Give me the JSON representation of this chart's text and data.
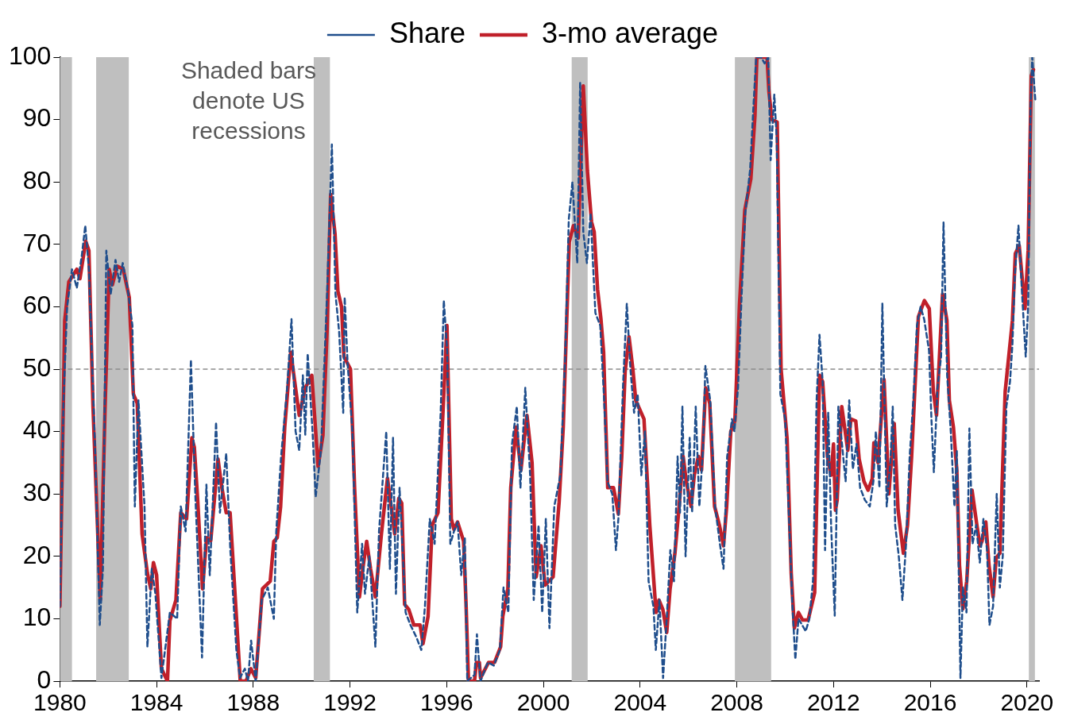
{
  "chart_data": {
    "type": "line",
    "xlim": [
      1980,
      2020.5
    ],
    "xticks": [
      1980,
      1984,
      1988,
      1992,
      1996,
      2000,
      2004,
      2008,
      2012,
      2016,
      2020
    ],
    "ylim": [
      0,
      100
    ],
    "yticks": [
      0,
      10,
      20,
      30,
      40,
      50,
      60,
      70,
      80,
      90,
      100
    ],
    "grid": false,
    "legend": "top",
    "marker": "none",
    "annotations": [
      "Shaded bars denote US recessions"
    ],
    "ref_lines": [
      {
        "axis": "y",
        "value": 50,
        "color": "#8c8c8c",
        "line_style": "dashed"
      }
    ],
    "bands": [
      {
        "axis": "x",
        "from": 1980.0,
        "to": 1980.5,
        "color": "#bfbfbf"
      },
      {
        "axis": "x",
        "from": 1981.5,
        "to": 1982.85,
        "color": "#bfbfbf"
      },
      {
        "axis": "x",
        "from": 1990.5,
        "to": 1991.17,
        "color": "#bfbfbf"
      },
      {
        "axis": "x",
        "from": 2001.17,
        "to": 2001.83,
        "color": "#bfbfbf"
      },
      {
        "axis": "x",
        "from": 2007.92,
        "to": 2009.42,
        "color": "#bfbfbf"
      },
      {
        "axis": "x",
        "from": 2020.08,
        "to": 2020.33,
        "color": "#bfbfbf"
      }
    ],
    "series": [
      {
        "name": "Share",
        "color": "#1f4e8c",
        "line_style": "dashed",
        "x": [
          1980.0,
          1980.15,
          1980.3,
          1980.5,
          1980.7,
          1980.9,
          1981.05,
          1981.2,
          1981.45,
          1981.65,
          1981.78,
          1981.92,
          1982.1,
          1982.3,
          1982.45,
          1982.6,
          1982.8,
          1983.0,
          1983.1,
          1983.25,
          1983.5,
          1983.62,
          1983.8,
          1983.95,
          1984.2,
          1984.55,
          1984.85,
          1985.0,
          1985.2,
          1985.42,
          1985.6,
          1985.88,
          1986.06,
          1986.2,
          1986.46,
          1986.62,
          1986.88,
          1987.05,
          1987.3,
          1987.45,
          1987.65,
          1987.78,
          1987.91,
          1988.1,
          1988.35,
          1988.6,
          1988.85,
          1988.95,
          1989.15,
          1989.4,
          1989.58,
          1989.75,
          1989.9,
          1990.05,
          1990.15,
          1990.25,
          1990.45,
          1990.58,
          1990.8,
          1991.05,
          1991.25,
          1991.4,
          1991.55,
          1991.72,
          1991.78,
          1991.9,
          1992.1,
          1992.3,
          1992.5,
          1992.62,
          1992.8,
          1993.05,
          1993.2,
          1993.5,
          1993.65,
          1993.78,
          1993.9,
          1994.05,
          1994.3,
          1994.5,
          1994.75,
          1994.95,
          1995.1,
          1995.3,
          1995.5,
          1995.75,
          1995.88,
          1996.02,
          1996.15,
          1996.3,
          1996.45,
          1996.6,
          1996.75,
          1996.85,
          1997.15,
          1997.25,
          1997.4,
          1997.7,
          1997.95,
          1998.2,
          1998.35,
          1998.55,
          1998.7,
          1998.9,
          1999.05,
          1999.25,
          1999.45,
          1999.6,
          1999.8,
          1999.95,
          2000.1,
          2000.25,
          2000.45,
          2000.7,
          2000.9,
          2001.05,
          2001.2,
          2001.4,
          2001.52,
          2001.65,
          2001.8,
          2001.95,
          2002.15,
          2002.35,
          2002.5,
          2002.65,
          2002.85,
          2003.0,
          2003.1,
          2003.3,
          2003.45,
          2003.6,
          2003.75,
          2003.9,
          2004.05,
          2004.2,
          2004.35,
          2004.55,
          2004.65,
          2004.8,
          2004.95,
          2005.1,
          2005.25,
          2005.4,
          2005.55,
          2005.65,
          2005.75,
          2005.88,
          2006.05,
          2006.15,
          2006.3,
          2006.45,
          2006.6,
          2006.7,
          2006.9,
          2007.1,
          2007.3,
          2007.45,
          2007.6,
          2007.8,
          2007.9,
          2008.05,
          2008.2,
          2008.35,
          2008.55,
          2008.7,
          2008.8,
          2009.0,
          2009.15,
          2009.3,
          2009.4,
          2009.55,
          2009.65,
          2009.8,
          2010.0,
          2010.15,
          2010.3,
          2010.42,
          2010.55,
          2010.7,
          2010.85,
          2011.0,
          2011.15,
          2011.3,
          2011.42,
          2011.55,
          2011.65,
          2011.78,
          2011.9,
          2012.05,
          2012.2,
          2012.35,
          2012.5,
          2012.65,
          2012.8,
          2012.95,
          2013.1,
          2013.3,
          2013.5,
          2013.65,
          2013.75,
          2013.9,
          2014.02,
          2014.2,
          2014.35,
          2014.45,
          2014.55,
          2014.7,
          2014.85,
          2015.0,
          2015.15,
          2015.3,
          2015.45,
          2015.6,
          2015.75,
          2015.95,
          2016.05,
          2016.15,
          2016.3,
          2016.45,
          2016.55,
          2016.7,
          2016.85,
          2017.0,
          2017.1,
          2017.25,
          2017.35,
          2017.5,
          2017.62,
          2017.75,
          2017.9,
          2018.05,
          2018.2,
          2018.35,
          2018.45,
          2018.6,
          2018.75,
          2018.88,
          2019.0,
          2019.15,
          2019.3,
          2019.4,
          2019.5,
          2019.65,
          2019.8,
          2019.95,
          2020.05,
          2020.15,
          2020.22,
          2020.35
        ],
        "values": [
          12,
          45,
          60,
          66,
          63,
          68,
          73,
          66,
          38,
          9,
          18,
          69,
          62,
          67.5,
          64,
          67,
          63,
          57,
          28,
          45,
          28,
          5.5,
          18,
          14,
          0.5,
          11,
          10,
          28,
          24,
          51.5,
          30,
          3.8,
          31.5,
          17,
          41.5,
          27,
          36.5,
          21,
          5,
          0.5,
          2,
          0,
          6.5,
          0,
          13,
          15,
          10,
          24,
          36,
          47,
          58,
          40,
          37,
          49,
          39.5,
          52.5,
          40,
          29.5,
          37,
          62,
          86,
          62,
          56,
          43,
          61.5,
          51,
          40,
          11,
          22,
          14,
          20,
          5.5,
          24,
          40,
          18,
          39,
          14,
          31,
          11,
          9,
          7,
          5,
          12,
          26,
          22,
          43,
          61,
          53,
          22,
          24,
          25.5,
          17,
          23,
          0,
          1,
          7.5,
          0,
          3,
          2.5,
          5,
          15,
          11,
          38,
          44,
          31,
          47,
          33,
          13,
          25,
          11,
          26,
          8.5,
          28,
          33,
          52,
          74,
          80,
          67,
          96,
          72,
          67,
          75,
          59,
          57,
          46,
          32,
          30,
          21,
          26,
          48,
          60.5,
          50,
          43,
          46,
          33,
          40,
          16,
          12,
          5,
          13,
          0.5,
          10,
          21,
          16,
          36,
          27,
          44,
          20,
          39,
          27,
          44,
          28,
          37,
          50.5,
          45,
          28,
          22,
          18,
          36,
          42,
          40,
          47,
          62,
          75,
          82,
          93,
          100,
          100,
          99,
          100,
          83.5,
          94,
          87,
          46,
          42,
          27,
          12,
          3.5,
          10,
          9,
          8,
          10,
          16,
          45,
          55.5,
          48,
          21,
          43,
          25,
          10.5,
          44,
          38,
          32,
          45,
          34,
          38,
          31,
          29,
          28,
          32,
          40,
          31,
          60.5,
          28,
          35,
          44,
          25,
          20,
          13,
          22,
          36,
          45,
          57,
          60,
          58,
          53,
          42,
          33.5,
          47,
          52,
          73.5,
          49,
          40,
          28,
          37,
          0.5,
          15,
          11,
          40.5,
          22,
          25,
          19,
          26,
          21,
          9,
          12,
          30,
          15,
          20,
          44,
          48,
          54,
          65,
          73,
          62,
          52,
          60,
          92,
          100,
          93
        ]
      },
      {
        "name": "3-mo average",
        "color": "#c0202a",
        "line_style": "solid",
        "x": [
          1980.0,
          1980.2,
          1980.37,
          1980.7,
          1980.83,
          1981.07,
          1981.2,
          1981.37,
          1981.67,
          1981.87,
          1982.04,
          1982.17,
          1982.37,
          1982.62,
          1982.87,
          1983.04,
          1983.2,
          1983.4,
          1983.62,
          1983.76,
          1983.87,
          1984.0,
          1984.2,
          1984.45,
          1984.55,
          1984.8,
          1985.0,
          1985.24,
          1985.46,
          1985.56,
          1985.7,
          1985.9,
          1986.07,
          1986.24,
          1986.54,
          1986.7,
          1986.88,
          1987.04,
          1987.3,
          1987.46,
          1987.7,
          1987.9,
          1988.1,
          1988.38,
          1988.7,
          1988.85,
          1988.99,
          1989.13,
          1989.3,
          1989.55,
          1989.9,
          1990.15,
          1990.42,
          1990.68,
          1990.88,
          1991.05,
          1991.2,
          1991.38,
          1991.5,
          1991.65,
          1991.75,
          1992.02,
          1992.19,
          1992.39,
          1992.55,
          1992.69,
          1992.85,
          1993.05,
          1993.3,
          1993.55,
          1993.72,
          1993.85,
          1994.02,
          1994.14,
          1994.26,
          1994.43,
          1994.64,
          1994.9,
          1995.02,
          1995.23,
          1995.4,
          1995.64,
          1995.84,
          1996.01,
          1996.19,
          1996.3,
          1996.45,
          1996.7,
          1996.8,
          1996.9,
          1997.15,
          1997.23,
          1997.35,
          1997.4,
          1997.73,
          1997.98,
          1998.23,
          1998.32,
          1998.53,
          1998.65,
          1998.87,
          1999.07,
          1999.2,
          1999.32,
          1999.53,
          1999.7,
          1999.9,
          2000.07,
          2000.4,
          2000.65,
          2000.82,
          2001.07,
          2001.24,
          2001.44,
          2001.65,
          2001.82,
          2001.99,
          2002.1,
          2002.24,
          2002.38,
          2002.49,
          2002.66,
          2002.9,
          2003.1,
          2003.24,
          2003.38,
          2003.54,
          2003.7,
          2003.82,
          2004.16,
          2004.4,
          2004.66,
          2004.78,
          2004.94,
          2005.1,
          2005.24,
          2005.44,
          2005.6,
          2005.78,
          2005.91,
          2006.11,
          2006.24,
          2006.41,
          2006.54,
          2006.71,
          2006.88,
          2007.08,
          2007.28,
          2007.45,
          2007.58,
          2007.75,
          2007.92,
          2008.11,
          2008.33,
          2008.58,
          2008.75,
          2008.83,
          2009.25,
          2009.33,
          2009.45,
          2009.67,
          2009.83,
          2010.08,
          2010.25,
          2010.38,
          2010.55,
          2010.72,
          2010.95,
          2011.22,
          2011.42,
          2011.55,
          2011.75,
          2011.9,
          2012.0,
          2012.08,
          2012.15,
          2012.34,
          2012.59,
          2012.72,
          2012.92,
          2013.06,
          2013.26,
          2013.43,
          2013.6,
          2013.67,
          2013.84,
          2014.09,
          2014.29,
          2014.51,
          2014.67,
          2014.89,
          2015.06,
          2015.23,
          2015.51,
          2015.76,
          2015.96,
          2016.13,
          2016.26,
          2016.51,
          2016.69,
          2016.79,
          2016.96,
          2017.1,
          2017.21,
          2017.35,
          2017.51,
          2017.73,
          2017.93,
          2018.06,
          2018.14,
          2018.3,
          2018.43,
          2018.6,
          2018.73,
          2018.88,
          2019.1,
          2019.4,
          2019.52,
          2019.68,
          2019.92,
          2020.05,
          2020.18,
          2020.27
        ],
        "values": [
          12,
          57.8,
          64,
          66,
          64.5,
          70.5,
          69,
          44,
          13,
          44,
          66,
          63.5,
          66.5,
          66,
          61.5,
          46,
          44.5,
          23.6,
          17.3,
          14.8,
          19,
          17,
          2,
          0,
          9.7,
          13,
          27,
          26,
          39,
          37.5,
          29,
          14.8,
          23,
          22.5,
          35.6,
          31,
          27,
          27,
          10.4,
          0,
          0,
          2,
          0.5,
          14.8,
          16,
          22.4,
          23,
          28,
          40.7,
          52.7,
          42.6,
          47,
          49,
          34.4,
          39.4,
          56,
          78,
          71.7,
          62.5,
          60,
          52,
          50,
          31,
          13.5,
          18.6,
          22.4,
          18,
          13.5,
          23.6,
          32.5,
          27.5,
          23.6,
          29.3,
          28.5,
          12.3,
          11.5,
          9,
          9,
          6,
          10.4,
          25,
          27,
          42.6,
          57,
          26,
          24.3,
          25.5,
          22.4,
          12.4,
          0,
          0,
          3,
          3,
          0.5,
          3,
          3,
          5.5,
          10.4,
          14.8,
          31,
          40.7,
          33.8,
          38.5,
          42.6,
          35,
          16.7,
          21.7,
          15.4,
          16.7,
          28.7,
          40.7,
          70.4,
          73,
          71,
          95.4,
          81.8,
          73.6,
          72,
          62.8,
          58,
          52.7,
          31,
          31,
          26.8,
          36,
          49.6,
          55.2,
          50,
          45,
          42,
          25,
          11,
          13,
          11.5,
          7.8,
          14.8,
          20.5,
          27.4,
          36,
          32,
          28,
          33,
          36,
          33.8,
          47,
          44.5,
          28,
          25,
          21.7,
          28,
          40,
          41.7,
          60.3,
          75.5,
          80.5,
          90.6,
          100,
          100,
          94.4,
          90,
          89.6,
          50,
          38.8,
          17.3,
          8.5,
          11,
          9.8,
          9.8,
          14.2,
          49,
          48,
          36,
          33,
          38,
          27.4,
          29,
          44,
          37,
          42,
          41.7,
          35.6,
          32,
          30.6,
          32.4,
          38.2,
          35,
          48.3,
          30,
          41.3,
          27.4,
          20.5,
          25,
          36,
          58.4,
          61,
          59.7,
          46.4,
          42.6,
          62,
          57.8,
          45,
          40.7,
          33.8,
          18.6,
          11.6,
          16,
          30.6,
          25,
          21.7,
          22.4,
          25.5,
          18.6,
          13.5,
          19.8,
          20.5,
          46.4,
          57.8,
          68.5,
          69.8,
          59.7,
          69,
          97,
          98
        ]
      }
    ]
  }
}
